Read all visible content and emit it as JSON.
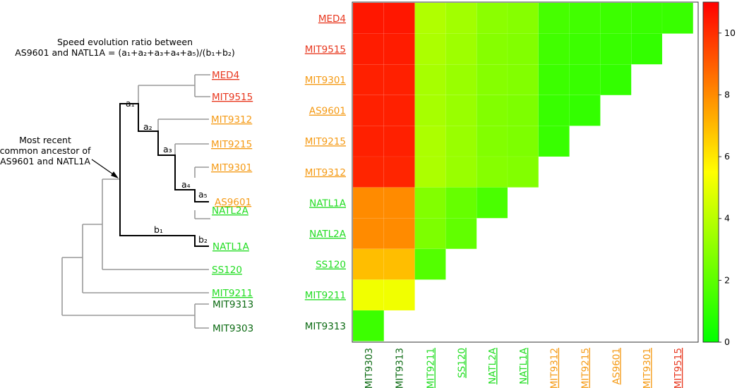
{
  "colors": {
    "red": "#e8381f",
    "orange": "#f59a14",
    "light_green": "#22dd22",
    "dark_green": "#0b6a12",
    "tree_gray": "#999999",
    "highlight": "#000000"
  },
  "tree": {
    "title_line1": "Speed evolution ratio between",
    "title_line2": "AS9601 and NATL1A = (a₁+a₂+a₃+a₄+a₅)/(b₁+b₂)",
    "annotation": [
      "Most recent",
      "common ancestor of",
      "AS9601 and NATL1A"
    ],
    "branch_labels": {
      "a1": "a₁",
      "a2": "a₂",
      "a3": "a₃",
      "a4": "a₄",
      "a5": "a₅",
      "b1": "b₁",
      "b2": "b₂"
    },
    "leaves": [
      {
        "name": "MED4",
        "color": "red",
        "underline": true
      },
      {
        "name": "MIT9515",
        "color": "red",
        "underline": true
      },
      {
        "name": "MIT9312",
        "color": "orange",
        "underline": true
      },
      {
        "name": "MIT9215",
        "color": "orange",
        "underline": true
      },
      {
        "name": "MIT9301",
        "color": "orange",
        "underline": true
      },
      {
        "name": "AS9601",
        "color": "orange",
        "underline": true
      },
      {
        "name": "NATL2A",
        "color": "light_green",
        "underline": true
      },
      {
        "name": "NATL1A",
        "color": "light_green",
        "underline": true
      },
      {
        "name": "SS120",
        "color": "light_green",
        "underline": true
      },
      {
        "name": "MIT9211",
        "color": "light_green",
        "underline": true
      },
      {
        "name": "MIT9313",
        "color": "dark_green",
        "underline": false
      },
      {
        "name": "MIT9303",
        "color": "dark_green",
        "underline": false
      }
    ]
  },
  "chart_data": {
    "type": "heatmap",
    "rows": [
      {
        "name": "MED4",
        "color": "red",
        "underline": true
      },
      {
        "name": "MIT9515",
        "color": "red",
        "underline": true
      },
      {
        "name": "MIT9301",
        "color": "orange",
        "underline": true
      },
      {
        "name": "AS9601",
        "color": "orange",
        "underline": true
      },
      {
        "name": "MIT9215",
        "color": "orange",
        "underline": true
      },
      {
        "name": "MIT9312",
        "color": "orange",
        "underline": true
      },
      {
        "name": "NATL1A",
        "color": "light_green",
        "underline": true
      },
      {
        "name": "NATL2A",
        "color": "light_green",
        "underline": true
      },
      {
        "name": "SS120",
        "color": "light_green",
        "underline": true
      },
      {
        "name": "MIT9211",
        "color": "light_green",
        "underline": true
      },
      {
        "name": "MIT9313",
        "color": "dark_green",
        "underline": false
      }
    ],
    "columns": [
      {
        "name": "MIT9303",
        "color": "dark_green",
        "underline": false
      },
      {
        "name": "MIT9313",
        "color": "dark_green",
        "underline": false
      },
      {
        "name": "MIT9211",
        "color": "light_green",
        "underline": true
      },
      {
        "name": "SS120",
        "color": "light_green",
        "underline": true
      },
      {
        "name": "NATL2A",
        "color": "light_green",
        "underline": true
      },
      {
        "name": "NATL1A",
        "color": "light_green",
        "underline": true
      },
      {
        "name": "MIT9312",
        "color": "orange",
        "underline": true
      },
      {
        "name": "MIT9215",
        "color": "orange",
        "underline": true
      },
      {
        "name": "AS9601",
        "color": "orange",
        "underline": true
      },
      {
        "name": "MIT9301",
        "color": "orange",
        "underline": true
      },
      {
        "name": "MIT9515",
        "color": "red",
        "underline": true
      }
    ],
    "values": [
      [
        10.5,
        10.5,
        3.8,
        3.5,
        3.0,
        2.9,
        1.5,
        1.4,
        1.3,
        1.2,
        1.2
      ],
      [
        10.4,
        10.4,
        3.7,
        3.4,
        2.9,
        2.8,
        1.4,
        1.3,
        1.2,
        1.1
      ],
      [
        10.3,
        10.3,
        3.6,
        3.3,
        2.9,
        2.8,
        1.3,
        1.2,
        1.1
      ],
      [
        10.3,
        10.3,
        3.6,
        3.3,
        2.8,
        2.7,
        1.2,
        1.1
      ],
      [
        10.3,
        10.3,
        3.7,
        3.3,
        2.8,
        2.7,
        1.2
      ],
      [
        10.2,
        10.2,
        3.7,
        3.3,
        2.9,
        2.8
      ],
      [
        8.0,
        8.0,
        2.8,
        2.2,
        1.6
      ],
      [
        8.0,
        8.0,
        2.7,
        2.1
      ],
      [
        6.9,
        6.9,
        1.8
      ],
      [
        5.2,
        5.2
      ],
      [
        1.3
      ]
    ],
    "colorbar": {
      "min": 0,
      "max": 11,
      "ticks": [
        0,
        2,
        4,
        6,
        8,
        10
      ]
    }
  }
}
